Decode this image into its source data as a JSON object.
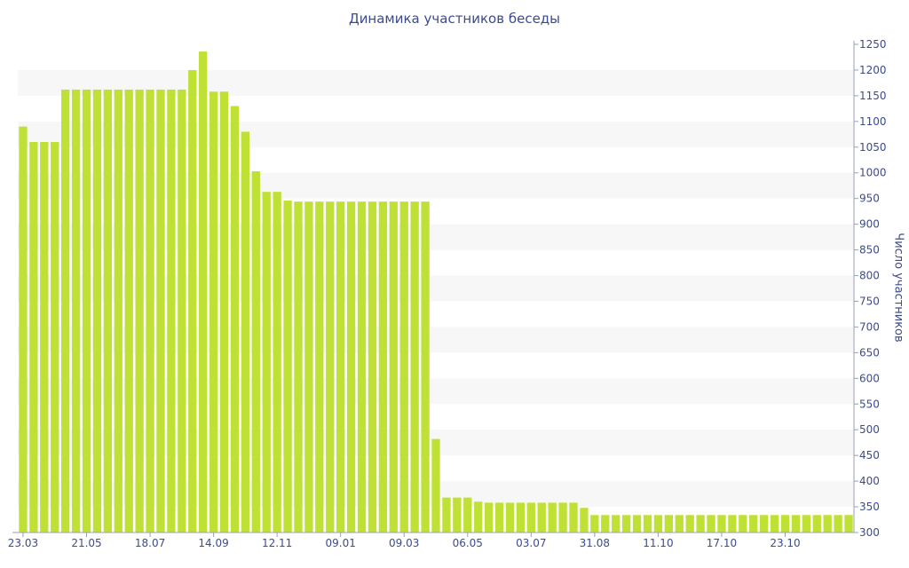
{
  "chart_data": {
    "type": "bar",
    "title": "Динамика участников беседы",
    "xlabel": "",
    "ylabel": "Число участников",
    "ylim": [
      300,
      1250
    ],
    "y_ticks": [
      300,
      350,
      400,
      450,
      500,
      550,
      600,
      650,
      700,
      750,
      800,
      850,
      900,
      950,
      1000,
      1050,
      1100,
      1150,
      1200,
      1250
    ],
    "grid": "horizontal alternating bands",
    "bar_color": "#bfe035",
    "band_color": "#f7f7f7",
    "text_color": "#3b4b8f",
    "x_tick_labels": [
      {
        "index": 0,
        "label": "23.03"
      },
      {
        "index": 6,
        "label": "21.05"
      },
      {
        "index": 12,
        "label": "18.07"
      },
      {
        "index": 18,
        "label": "14.09"
      },
      {
        "index": 24,
        "label": "12.11"
      },
      {
        "index": 30,
        "label": "09.01"
      },
      {
        "index": 36,
        "label": "09.03"
      },
      {
        "index": 42,
        "label": "06.05"
      },
      {
        "index": 48,
        "label": "03.07"
      },
      {
        "index": 54,
        "label": "31.08"
      },
      {
        "index": 60,
        "label": "11.10"
      },
      {
        "index": 66,
        "label": "17.10"
      },
      {
        "index": 72,
        "label": "23.10"
      }
    ],
    "values": [
      1090,
      1060,
      1060,
      1060,
      1162,
      1162,
      1162,
      1162,
      1162,
      1162,
      1162,
      1162,
      1162,
      1162,
      1162,
      1162,
      1200,
      1236,
      1158,
      1158,
      1130,
      1080,
      1003,
      963,
      963,
      946,
      944,
      944,
      944,
      944,
      944,
      944,
      944,
      944,
      944,
      944,
      944,
      944,
      944,
      482,
      368,
      368,
      368,
      360,
      358,
      358,
      358,
      358,
      358,
      358,
      358,
      358,
      358,
      348,
      334,
      334,
      334,
      334,
      334,
      334,
      334,
      334,
      334,
      334,
      334,
      334,
      334,
      334,
      334,
      334,
      334,
      334,
      334,
      334,
      334,
      334,
      334,
      334,
      334
    ]
  }
}
